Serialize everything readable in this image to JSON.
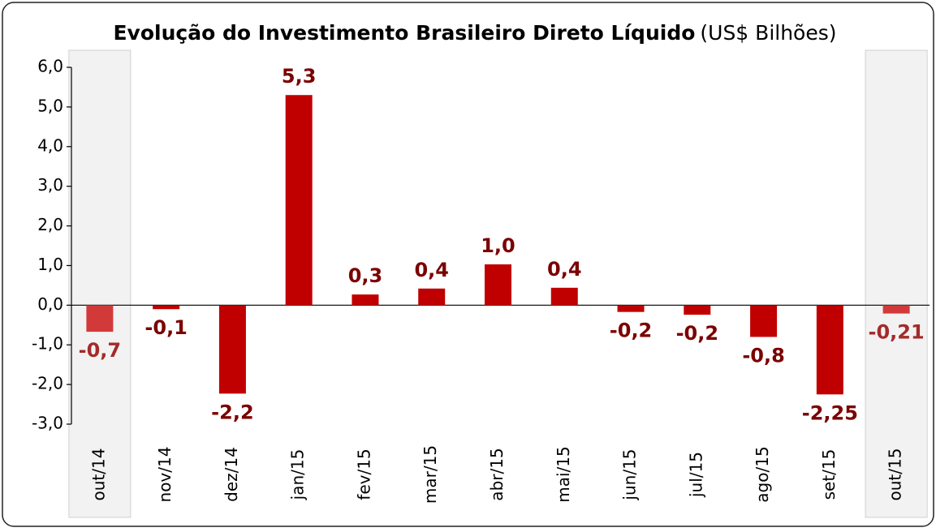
{
  "chart_data": {
    "type": "bar",
    "title": "Evolução do Investimento Brasileiro Direto Líquido",
    "subtitle": "(US$ Bilhões)",
    "categories": [
      "out/14",
      "nov/14",
      "dez/14",
      "jan/15",
      "fev/15",
      "mar/15",
      "abr/15",
      "mai/15",
      "jun/15",
      "jul/15",
      "ago/15",
      "set/15",
      "out/15"
    ],
    "values": [
      -0.67,
      -0.1,
      -2.23,
      5.3,
      0.27,
      0.42,
      1.03,
      0.44,
      -0.17,
      -0.24,
      -0.8,
      -2.25,
      -0.21
    ],
    "value_labels": [
      "-0,7",
      "-0,1",
      "-2,2",
      "5,3",
      "0,3",
      "0,4",
      "1,0",
      "0,4",
      "-0,2",
      "-0,2",
      "-0,8",
      "-2,25",
      "-0,21"
    ],
    "colors": [
      "#d23a3a",
      "#c00000",
      "#c00000",
      "#c00000",
      "#c00000",
      "#c00000",
      "#c00000",
      "#c00000",
      "#c00000",
      "#c00000",
      "#c00000",
      "#c00000",
      "#d23a3a"
    ],
    "label_colors": [
      "#a52a2a",
      "#7b0000",
      "#7b0000",
      "#7b0000",
      "#7b0000",
      "#7b0000",
      "#7b0000",
      "#7b0000",
      "#7b0000",
      "#7b0000",
      "#7b0000",
      "#7b0000",
      "#a52a2a"
    ],
    "highlight": [
      0,
      12
    ],
    "ylim": [
      -3,
      6
    ],
    "yticks": [
      {
        "value": 6,
        "label": "6,0"
      },
      {
        "value": 5,
        "label": "5,0"
      },
      {
        "value": 4,
        "label": "4,0"
      },
      {
        "value": 3,
        "label": "3,0"
      },
      {
        "value": 2,
        "label": "2,0"
      },
      {
        "value": 1,
        "label": "1,0"
      },
      {
        "value": 0,
        "label": "0,0"
      },
      {
        "value": -1,
        "label": "-1,0"
      },
      {
        "value": -2,
        "label": "-2,0"
      },
      {
        "value": -3,
        "label": "-3,0"
      }
    ]
  }
}
